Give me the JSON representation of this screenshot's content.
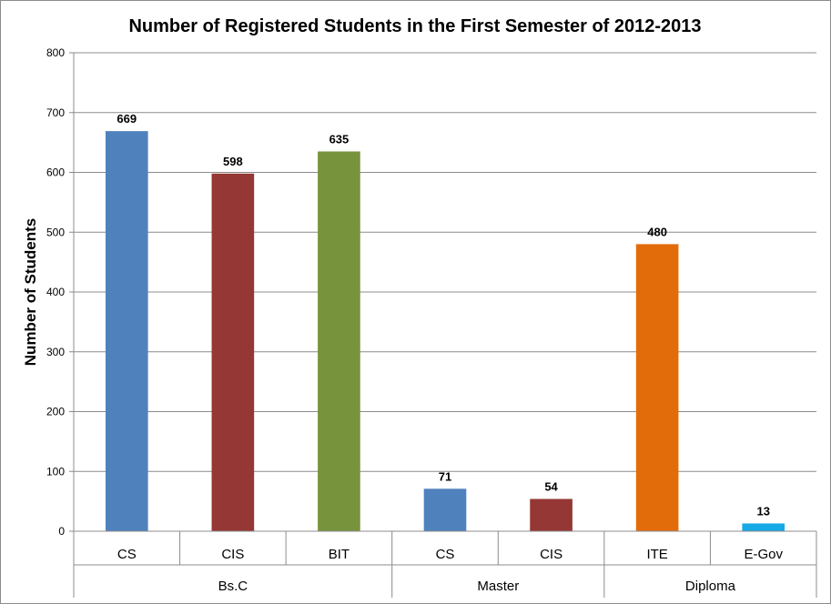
{
  "chart_data": {
    "type": "bar",
    "title": "Number of Registered Students in the First Semester of 2012-2013",
    "ylabel": "Number of Students",
    "xlabel": "",
    "ylim": [
      0,
      800
    ],
    "yticks": [
      0,
      100,
      200,
      300,
      400,
      500,
      600,
      700,
      800
    ],
    "grid": true,
    "legend": "none",
    "groups": [
      {
        "name": "Bs.C",
        "count": 3
      },
      {
        "name": "Master",
        "count": 2
      },
      {
        "name": "Diploma",
        "count": 2
      }
    ],
    "bars": [
      {
        "category": "CS",
        "group": "Bs.C",
        "value": 669,
        "color": "#4F81BD"
      },
      {
        "category": "CIS",
        "group": "Bs.C",
        "value": 598,
        "color": "#953735"
      },
      {
        "category": "BIT",
        "group": "Bs.C",
        "value": 635,
        "color": "#77933C"
      },
      {
        "category": "CS",
        "group": "Master",
        "value": 71,
        "color": "#4F81BD"
      },
      {
        "category": "CIS",
        "group": "Master",
        "value": 54,
        "color": "#953735"
      },
      {
        "category": "ITE",
        "group": "Diploma",
        "value": 480,
        "color": "#E36C0A"
      },
      {
        "category": "E-Gov",
        "group": "Diploma",
        "value": 13,
        "color": "#17A9E6"
      }
    ]
  }
}
